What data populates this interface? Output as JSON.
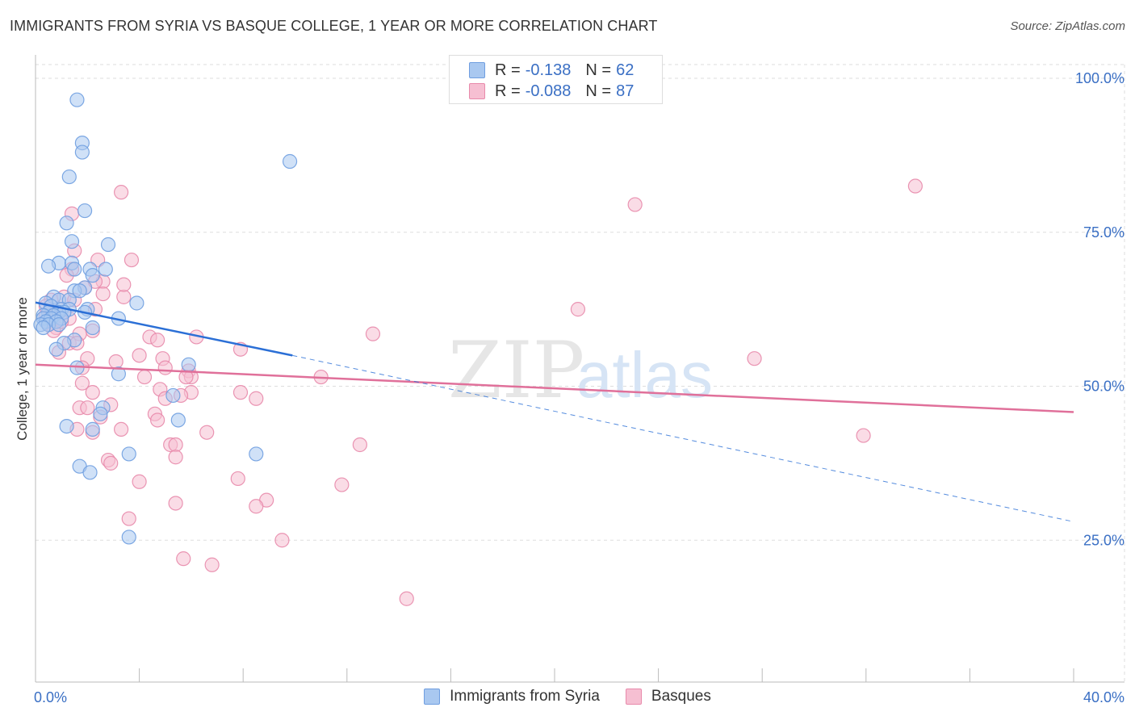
{
  "header": {
    "title": "IMMIGRANTS FROM SYRIA VS BASQUE COLLEGE, 1 YEAR OR MORE CORRELATION CHART",
    "source": "Source: ZipAtlas.com"
  },
  "watermark": {
    "zip": "ZIP",
    "atlas": "atlas"
  },
  "legend": [
    {
      "r_label": "R =",
      "r_value": "-0.138",
      "n_label": "N =",
      "n_value": "62"
    },
    {
      "r_label": "R =",
      "r_value": "-0.088",
      "n_label": "N =",
      "n_value": "87"
    }
  ],
  "colors": {
    "syria_fill": "#a9c8f0",
    "syria_stroke": "#6f9ee0",
    "syria_line": "#2b6fd6",
    "basque_fill": "#f6bfd2",
    "basque_stroke": "#e88aab",
    "basque_line": "#e0709a",
    "grid": "#dddddd",
    "tick_label": "#3a6fc4"
  },
  "chart_data": {
    "type": "scatter",
    "title": "IMMIGRANTS FROM SYRIA VS BASQUE COLLEGE, 1 YEAR OR MORE CORRELATION CHART",
    "xlabel": "",
    "ylabel": "College, 1 year or more",
    "xlim": [
      0,
      40
    ],
    "ylim": [
      0,
      105
    ],
    "x_tick_labels": [
      "0.0%",
      "40.0%"
    ],
    "y_ticks": [
      25,
      50,
      75,
      100
    ],
    "y_tick_labels": [
      "25.0%",
      "50.0%",
      "75.0%",
      "100.0%"
    ],
    "grid": true,
    "series": [
      {
        "name": "Immigrants from Syria",
        "legend_label": "Immigrants from Syria",
        "r": -0.138,
        "n": 62,
        "trend": {
          "x": [
            0.0,
            9.9
          ],
          "y": [
            63.6,
            55.0
          ]
        },
        "trend_extension": {
          "x": [
            9.9,
            40.0
          ],
          "y": [
            55.0,
            28.0
          ]
        },
        "points": [
          [
            1.6,
            96.5
          ],
          [
            1.8,
            89.5
          ],
          [
            1.8,
            88.0
          ],
          [
            9.8,
            86.5
          ],
          [
            1.3,
            84.0
          ],
          [
            1.9,
            78.5
          ],
          [
            1.2,
            76.5
          ],
          [
            1.4,
            73.5
          ],
          [
            2.8,
            73.0
          ],
          [
            0.9,
            70.0
          ],
          [
            1.4,
            70.0
          ],
          [
            0.5,
            69.5
          ],
          [
            1.5,
            69.0
          ],
          [
            2.1,
            69.0
          ],
          [
            2.7,
            69.0
          ],
          [
            2.2,
            68.0
          ],
          [
            1.9,
            66.0
          ],
          [
            1.5,
            65.5
          ],
          [
            1.7,
            65.5
          ],
          [
            0.7,
            64.5
          ],
          [
            0.9,
            64.0
          ],
          [
            1.3,
            64.0
          ],
          [
            0.4,
            63.5
          ],
          [
            3.9,
            63.5
          ],
          [
            0.6,
            63.0
          ],
          [
            1.0,
            62.5
          ],
          [
            1.3,
            62.5
          ],
          [
            2.0,
            62.5
          ],
          [
            0.5,
            62.0
          ],
          [
            0.9,
            62.0
          ],
          [
            1.1,
            62.0
          ],
          [
            1.9,
            62.0
          ],
          [
            0.3,
            61.5
          ],
          [
            0.7,
            61.5
          ],
          [
            0.3,
            61.0
          ],
          [
            0.6,
            61.0
          ],
          [
            1.0,
            61.0
          ],
          [
            3.2,
            61.0
          ],
          [
            0.4,
            60.5
          ],
          [
            0.8,
            60.5
          ],
          [
            0.2,
            60.0
          ],
          [
            0.5,
            60.0
          ],
          [
            0.9,
            60.0
          ],
          [
            2.2,
            59.5
          ],
          [
            0.3,
            59.5
          ],
          [
            1.5,
            57.5
          ],
          [
            1.1,
            57.0
          ],
          [
            0.8,
            56.0
          ],
          [
            1.6,
            53.0
          ],
          [
            3.2,
            52.0
          ],
          [
            5.9,
            53.5
          ],
          [
            5.3,
            48.5
          ],
          [
            2.6,
            46.5
          ],
          [
            2.5,
            45.5
          ],
          [
            5.5,
            44.5
          ],
          [
            1.2,
            43.5
          ],
          [
            2.2,
            43.0
          ],
          [
            3.6,
            39.0
          ],
          [
            8.5,
            39.0
          ],
          [
            1.7,
            37.0
          ],
          [
            2.1,
            36.0
          ],
          [
            3.6,
            25.5
          ]
        ]
      },
      {
        "name": "Basques",
        "legend_label": "Basques",
        "r": -0.088,
        "n": 87,
        "trend": {
          "x": [
            0.0,
            40.0
          ],
          "y": [
            53.5,
            45.8
          ]
        },
        "points": [
          [
            33.9,
            82.5
          ],
          [
            23.1,
            79.5
          ],
          [
            3.3,
            81.5
          ],
          [
            1.4,
            78.0
          ],
          [
            1.5,
            72.0
          ],
          [
            2.4,
            70.5
          ],
          [
            3.7,
            70.5
          ],
          [
            1.4,
            69.0
          ],
          [
            1.2,
            68.0
          ],
          [
            2.6,
            67.0
          ],
          [
            1.9,
            66.0
          ],
          [
            2.6,
            65.0
          ],
          [
            1.1,
            64.5
          ],
          [
            3.4,
            64.5
          ],
          [
            1.5,
            64.0
          ],
          [
            0.6,
            64.0
          ],
          [
            2.3,
            62.5
          ],
          [
            20.9,
            62.5
          ],
          [
            0.9,
            62.0
          ],
          [
            0.4,
            61.5
          ],
          [
            1.3,
            61.0
          ],
          [
            0.5,
            60.0
          ],
          [
            0.8,
            59.5
          ],
          [
            0.7,
            59.0
          ],
          [
            2.2,
            59.0
          ],
          [
            1.7,
            58.5
          ],
          [
            13.0,
            58.5
          ],
          [
            6.2,
            58.0
          ],
          [
            4.4,
            58.0
          ],
          [
            4.7,
            57.5
          ],
          [
            1.3,
            57.0
          ],
          [
            1.6,
            57.0
          ],
          [
            0.9,
            55.5
          ],
          [
            7.9,
            56.0
          ],
          [
            4.0,
            55.0
          ],
          [
            2.0,
            54.5
          ],
          [
            4.9,
            54.5
          ],
          [
            3.1,
            54.0
          ],
          [
            27.7,
            54.5
          ],
          [
            1.8,
            53.0
          ],
          [
            5.0,
            53.0
          ],
          [
            5.9,
            52.5
          ],
          [
            6.0,
            51.5
          ],
          [
            4.2,
            51.5
          ],
          [
            5.8,
            51.5
          ],
          [
            11.0,
            51.5
          ],
          [
            1.8,
            50.5
          ],
          [
            4.8,
            49.5
          ],
          [
            6.0,
            49.0
          ],
          [
            7.9,
            49.0
          ],
          [
            2.2,
            49.0
          ],
          [
            5.6,
            48.5
          ],
          [
            8.5,
            48.0
          ],
          [
            5.0,
            48.0
          ],
          [
            2.9,
            47.0
          ],
          [
            1.7,
            46.5
          ],
          [
            2.0,
            46.5
          ],
          [
            4.6,
            45.5
          ],
          [
            4.7,
            44.5
          ],
          [
            2.5,
            45.0
          ],
          [
            1.6,
            43.0
          ],
          [
            3.3,
            43.0
          ],
          [
            6.6,
            42.5
          ],
          [
            2.2,
            42.5
          ],
          [
            31.9,
            42.0
          ],
          [
            5.2,
            40.5
          ],
          [
            5.4,
            40.5
          ],
          [
            12.5,
            40.5
          ],
          [
            5.4,
            38.5
          ],
          [
            2.8,
            38.0
          ],
          [
            2.9,
            37.5
          ],
          [
            4.0,
            34.5
          ],
          [
            7.8,
            35.0
          ],
          [
            11.8,
            34.0
          ],
          [
            8.9,
            31.5
          ],
          [
            5.4,
            31.0
          ],
          [
            8.5,
            30.5
          ],
          [
            3.6,
            28.5
          ],
          [
            9.5,
            25.0
          ],
          [
            5.7,
            22.0
          ],
          [
            6.8,
            21.0
          ],
          [
            14.3,
            15.5
          ],
          [
            0.7,
            61.0
          ],
          [
            1.0,
            60.5
          ],
          [
            0.4,
            63.0
          ],
          [
            3.4,
            66.5
          ],
          [
            2.3,
            67.0
          ]
        ]
      }
    ]
  }
}
